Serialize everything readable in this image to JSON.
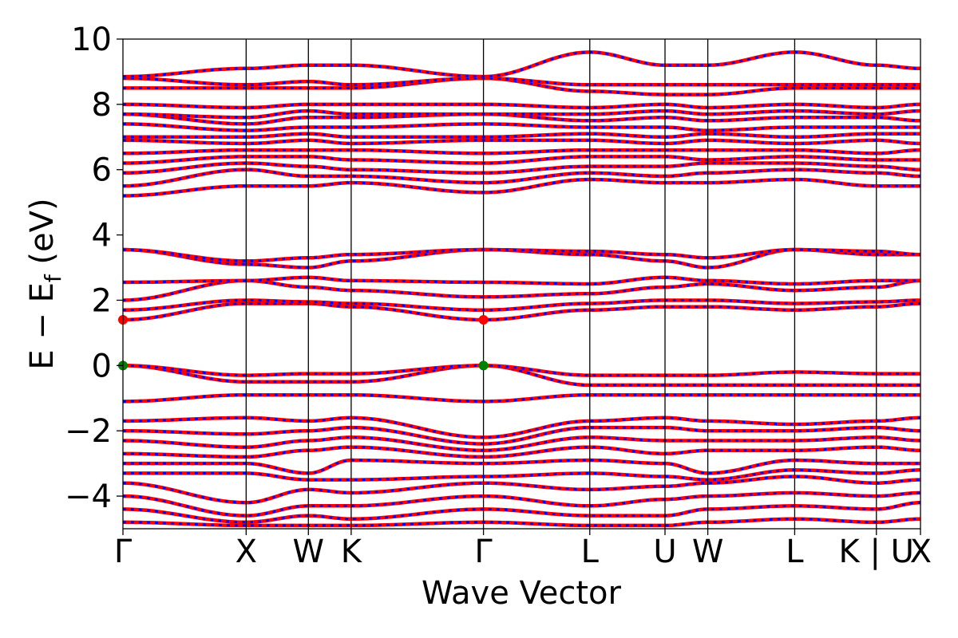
{
  "chart_data": {
    "type": "line",
    "title": "",
    "xlabel": "Wave Vector",
    "ylabel_main": "E − E",
    "ylabel_sub": "f",
    "ylabel_unit": "(eV)",
    "ylim": [
      -5,
      10
    ],
    "yticks": [
      -4,
      -2,
      0,
      2,
      4,
      6,
      8,
      10
    ],
    "ytick_labels": [
      "−4",
      "−2",
      "0",
      "2",
      "4",
      "6",
      "8",
      "10"
    ],
    "kpoints": [
      {
        "label": "Γ",
        "x": 0.0
      },
      {
        "label": "X",
        "x": 0.95
      },
      {
        "label": "W",
        "x": 1.43
      },
      {
        "label": "K",
        "x": 1.76
      },
      {
        "label": "Γ",
        "x": 2.78
      },
      {
        "label": "L",
        "x": 3.6
      },
      {
        "label": "U",
        "x": 4.18
      },
      {
        "label": "W",
        "x": 4.51
      },
      {
        "label": "L",
        "x": 5.18
      },
      {
        "label": "K | U",
        "x": 5.81
      },
      {
        "label": "X",
        "x": 6.15
      }
    ],
    "xlim": [
      0,
      6.15
    ],
    "grid": false,
    "spin_colors": {
      "up": "#ff0000",
      "down": "#0000ff"
    },
    "marker_colors": {
      "vbm": "#008000",
      "cbm": "#ff0000"
    },
    "series": [
      {
        "values": [
          -1.1,
          -0.9,
          -0.9,
          -0.9,
          -1.1,
          -0.9,
          -0.9,
          -0.9,
          -0.9,
          -0.9,
          -0.9
        ]
      },
      {
        "values": [
          0.0,
          -0.5,
          -0.5,
          -0.5,
          0.0,
          -0.6,
          -0.6,
          -0.6,
          -0.6,
          -0.6,
          -0.6
        ]
      },
      {
        "values": [
          0.0,
          -0.3,
          -0.25,
          -0.25,
          0.0,
          -0.3,
          -0.3,
          -0.3,
          -0.2,
          -0.25,
          -0.25
        ]
      },
      {
        "values": [
          1.4,
          1.9,
          1.9,
          1.8,
          1.4,
          1.7,
          1.8,
          1.8,
          1.7,
          1.8,
          1.9
        ]
      },
      {
        "values": [
          1.7,
          2.0,
          1.95,
          1.9,
          1.7,
          1.9,
          2.0,
          2.0,
          1.9,
          1.95,
          2.0
        ]
      },
      {
        "values": [
          2.0,
          2.6,
          2.4,
          2.3,
          2.1,
          2.2,
          2.4,
          2.5,
          2.3,
          2.4,
          2.6
        ]
      },
      {
        "values": [
          2.55,
          2.6,
          2.7,
          2.6,
          2.55,
          2.5,
          2.7,
          2.6,
          2.5,
          2.6,
          2.6
        ]
      },
      {
        "values": [
          3.55,
          3.1,
          3.0,
          3.2,
          3.55,
          3.4,
          3.2,
          3.0,
          3.55,
          3.4,
          3.4
        ]
      },
      {
        "values": [
          3.55,
          3.2,
          3.3,
          3.4,
          3.55,
          3.5,
          3.4,
          3.3,
          3.55,
          3.5,
          3.4
        ]
      },
      {
        "values": [
          -1.7,
          -1.6,
          -1.7,
          -1.6,
          -2.2,
          -1.7,
          -1.6,
          -1.7,
          -1.8,
          -1.7,
          -1.6
        ]
      },
      {
        "values": [
          -2.0,
          -2.1,
          -2.0,
          -1.9,
          -2.4,
          -1.9,
          -1.9,
          -2.0,
          -2.0,
          -1.9,
          -2.0
        ]
      },
      {
        "values": [
          -2.3,
          -2.5,
          -2.3,
          -2.2,
          -2.6,
          -2.2,
          -2.3,
          -2.3,
          -2.3,
          -2.2,
          -2.3
        ]
      },
      {
        "values": [
          -2.7,
          -2.8,
          -2.6,
          -2.5,
          -2.8,
          -2.5,
          -2.7,
          -2.6,
          -2.6,
          -2.5,
          -2.6
        ]
      },
      {
        "values": [
          -3.0,
          -3.0,
          -3.3,
          -2.9,
          -3.0,
          -2.9,
          -3.0,
          -3.3,
          -2.9,
          -3.0,
          -3.0
        ]
      },
      {
        "values": [
          -3.3,
          -3.3,
          -3.5,
          -3.5,
          -3.4,
          -3.3,
          -3.4,
          -3.5,
          -3.2,
          -3.3,
          -3.2
        ]
      },
      {
        "values": [
          -3.6,
          -4.2,
          -3.8,
          -3.9,
          -3.6,
          -3.8,
          -3.7,
          -3.6,
          -3.4,
          -3.6,
          -3.5
        ]
      },
      {
        "values": [
          -4.0,
          -4.6,
          -4.3,
          -4.3,
          -4.0,
          -4.3,
          -4.1,
          -4.0,
          -3.9,
          -4.0,
          -3.9
        ]
      },
      {
        "values": [
          -4.4,
          -4.8,
          -4.6,
          -4.7,
          -4.4,
          -4.6,
          -4.6,
          -4.4,
          -4.3,
          -4.4,
          -4.2
        ]
      },
      {
        "values": [
          -4.8,
          -4.9,
          -4.9,
          -4.9,
          -4.8,
          -4.9,
          -4.9,
          -4.8,
          -4.7,
          -4.8,
          -4.7
        ]
      },
      {
        "values": [
          5.2,
          5.5,
          5.5,
          5.6,
          5.3,
          5.7,
          5.6,
          5.6,
          5.7,
          5.5,
          5.5
        ]
      },
      {
        "values": [
          5.5,
          6.0,
          5.8,
          5.8,
          5.6,
          5.9,
          5.8,
          5.9,
          6.0,
          5.9,
          5.8
        ]
      },
      {
        "values": [
          5.9,
          6.2,
          6.1,
          6.0,
          5.9,
          6.1,
          6.1,
          6.2,
          6.2,
          6.1,
          6.0
        ]
      },
      {
        "values": [
          6.2,
          6.4,
          6.4,
          6.3,
          6.2,
          6.4,
          6.4,
          6.3,
          6.4,
          6.3,
          6.3
        ]
      },
      {
        "values": [
          6.5,
          6.6,
          6.6,
          6.6,
          6.5,
          6.6,
          6.6,
          6.6,
          6.6,
          6.5,
          6.6
        ]
      },
      {
        "values": [
          6.9,
          6.8,
          6.9,
          6.8,
          6.9,
          6.9,
          6.8,
          6.9,
          6.8,
          6.9,
          6.8
        ]
      },
      {
        "values": [
          7.0,
          7.0,
          7.1,
          7.0,
          7.0,
          7.1,
          7.0,
          7.1,
          7.0,
          7.1,
          7.1
        ]
      },
      {
        "values": [
          7.4,
          7.2,
          7.3,
          7.3,
          7.4,
          7.3,
          7.3,
          7.2,
          7.3,
          7.3,
          7.3
        ]
      },
      {
        "values": [
          7.7,
          7.4,
          7.6,
          7.6,
          7.7,
          7.5,
          7.6,
          7.5,
          7.6,
          7.6,
          7.5
        ]
      },
      {
        "values": [
          7.7,
          7.6,
          7.8,
          7.7,
          7.7,
          7.7,
          7.8,
          7.7,
          7.8,
          7.7,
          7.8
        ]
      },
      {
        "values": [
          8.0,
          7.9,
          8.0,
          8.0,
          8.0,
          7.9,
          8.0,
          7.9,
          8.0,
          7.9,
          8.0
        ]
      },
      {
        "values": [
          8.5,
          8.5,
          8.5,
          8.5,
          8.8,
          8.4,
          8.3,
          8.3,
          8.5,
          8.5,
          8.5
        ]
      },
      {
        "values": [
          8.8,
          8.6,
          8.7,
          8.6,
          8.8,
          8.6,
          8.6,
          8.6,
          8.6,
          8.6,
          8.6
        ]
      },
      {
        "values": [
          8.85,
          9.1,
          9.2,
          9.2,
          8.85,
          9.6,
          9.2,
          9.2,
          9.6,
          9.2,
          9.1
        ]
      }
    ],
    "markers": [
      {
        "kind": "vbm",
        "x": 0.0,
        "y": 0.0
      },
      {
        "kind": "vbm",
        "x": 2.78,
        "y": 0.0
      },
      {
        "kind": "cbm",
        "x": 0.0,
        "y": 1.4
      },
      {
        "kind": "cbm",
        "x": 2.78,
        "y": 1.4
      }
    ]
  }
}
